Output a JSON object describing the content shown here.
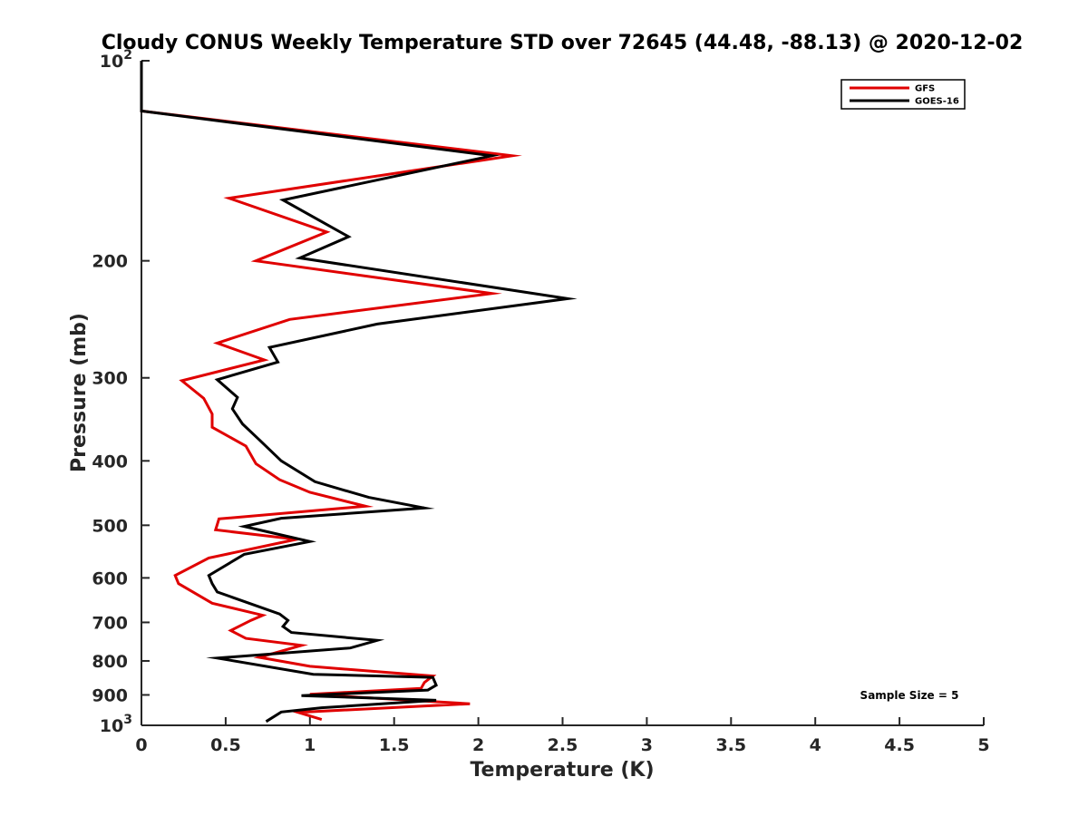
{
  "chart_data": {
    "type": "line",
    "title": "Cloudy CONUS Weekly Temperature STD over 72645 (44.48, -88.13) @ 2020-12-02",
    "xlabel": "Temperature (K)",
    "ylabel": "Pressure (mb)",
    "xlim": [
      0,
      5
    ],
    "ylim": [
      100,
      1000
    ],
    "y_scale": "log",
    "y_reversed": true,
    "x_ticks": [
      "0",
      "0.5",
      "1",
      "1.5",
      "2",
      "2.5",
      "3",
      "3.5",
      "4",
      "4.5",
      "5"
    ],
    "y_ticks": [
      {
        "value": 200,
        "label": "200"
      },
      {
        "value": 300,
        "label": "300"
      },
      {
        "value": 400,
        "label": "400"
      },
      {
        "value": 500,
        "label": "500"
      },
      {
        "value": 600,
        "label": "600"
      },
      {
        "value": 700,
        "label": "700"
      },
      {
        "value": 800,
        "label": "800"
      },
      {
        "value": 900,
        "label": "900"
      }
    ],
    "y_pow_ticks": [
      {
        "value": 100,
        "base": "10",
        "exp": "2"
      },
      {
        "value": 1000,
        "base": "10",
        "exp": "3"
      }
    ],
    "grid": false,
    "legend_position": "top-right",
    "series": [
      {
        "name": "GFS",
        "color": "#e00000",
        "points": [
          [
            0,
            100
          ],
          [
            0,
            119
          ],
          [
            2.2,
            139
          ],
          [
            0.52,
            161
          ],
          [
            1.1,
            181
          ],
          [
            0.68,
            200
          ],
          [
            2.08,
            224
          ],
          [
            0.88,
            245
          ],
          [
            0.45,
            266
          ],
          [
            0.73,
            282
          ],
          [
            0.24,
            303
          ],
          [
            0.37,
            322
          ],
          [
            0.42,
            340
          ],
          [
            0.42,
            356
          ],
          [
            0.62,
            380
          ],
          [
            0.68,
            404
          ],
          [
            0.82,
            427
          ],
          [
            1.0,
            446
          ],
          [
            1.33,
            468
          ],
          [
            0.46,
            489
          ],
          [
            0.44,
            508
          ],
          [
            0.92,
            525
          ],
          [
            0.4,
            560
          ],
          [
            0.2,
            595
          ],
          [
            0.22,
            612
          ],
          [
            0.42,
            655
          ],
          [
            0.72,
            683
          ],
          [
            0.65,
            695
          ],
          [
            0.53,
            720
          ],
          [
            0.62,
            740
          ],
          [
            0.95,
            758
          ],
          [
            0.7,
            790
          ],
          [
            1.0,
            815
          ],
          [
            1.73,
            843
          ],
          [
            1.68,
            862
          ],
          [
            1.66,
            880
          ],
          [
            1.0,
            898
          ],
          [
            1.95,
            928
          ],
          [
            0.93,
            956
          ],
          [
            1.07,
            980
          ]
        ]
      },
      {
        "name": "GOES-16",
        "color": "#000000",
        "points": [
          [
            0,
            100
          ],
          [
            0,
            119
          ],
          [
            2.08,
            139
          ],
          [
            0.84,
            162
          ],
          [
            1.23,
            184
          ],
          [
            0.94,
            198
          ],
          [
            2.53,
            228
          ],
          [
            1.4,
            249
          ],
          [
            0.76,
            270
          ],
          [
            0.81,
            284
          ],
          [
            0.45,
            302
          ],
          [
            0.57,
            321
          ],
          [
            0.54,
            334
          ],
          [
            0.6,
            352
          ],
          [
            0.7,
            372
          ],
          [
            0.83,
            400
          ],
          [
            1.03,
            430
          ],
          [
            1.35,
            454
          ],
          [
            1.68,
            471
          ],
          [
            0.83,
            488
          ],
          [
            0.61,
            502
          ],
          [
            1.0,
            529
          ],
          [
            0.61,
            553
          ],
          [
            0.4,
            595
          ],
          [
            0.42,
            612
          ],
          [
            0.45,
            630
          ],
          [
            0.82,
            680
          ],
          [
            0.87,
            695
          ],
          [
            0.84,
            710
          ],
          [
            0.89,
            725
          ],
          [
            1.4,
            745
          ],
          [
            1.24,
            765
          ],
          [
            0.45,
            792
          ],
          [
            1.02,
            838
          ],
          [
            1.73,
            847
          ],
          [
            1.75,
            870
          ],
          [
            1.7,
            885
          ],
          [
            0.95,
            902
          ],
          [
            1.75,
            917
          ],
          [
            1.07,
            941
          ],
          [
            0.83,
            955
          ],
          [
            0.74,
            987
          ]
        ]
      }
    ],
    "annotation": "Sample Size = 5"
  }
}
